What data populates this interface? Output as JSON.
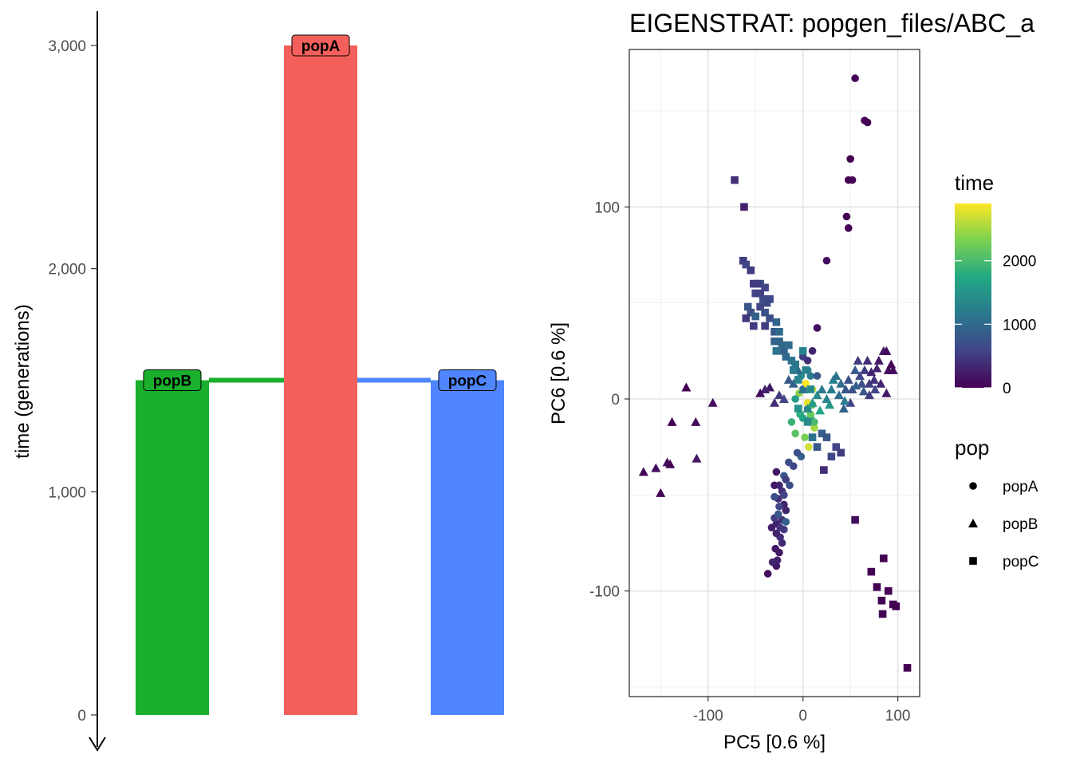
{
  "chart_data": [
    {
      "type": "bar",
      "ylabel": "time (generations)",
      "xlabel": "",
      "ylim": [
        0,
        3000
      ],
      "y_ticks": [
        0,
        1000,
        2000,
        3000
      ],
      "y_tick_labels": [
        "0",
        "1,000",
        "2,000",
        "3,000"
      ],
      "time_axis": "reversed arrow pointing down (present at bottom)",
      "populations": [
        {
          "name": "popB",
          "start": 1500,
          "end": 0,
          "color": "#1AAF2D"
        },
        {
          "name": "popA",
          "start": 3000,
          "end": 0,
          "color": "#F3605B"
        },
        {
          "name": "popC",
          "start": 1500,
          "end": 0,
          "color": "#4F86FF"
        }
      ],
      "splits": [
        {
          "from": "popA",
          "to": "popB",
          "time": 1500,
          "color": "#1AAF2D"
        },
        {
          "from": "popA",
          "to": "popC",
          "time": 1500,
          "color": "#4F86FF"
        }
      ],
      "grid": false
    },
    {
      "type": "scatter",
      "title": "EIGENSTRAT: popgen_files/ABC_a",
      "xlabel": "PC5 [0.6 %]",
      "ylabel": "PC6 [0.6 %]",
      "xlim": [
        -183,
        123
      ],
      "ylim": [
        -155,
        182
      ],
      "x_ticks": [
        -100,
        0,
        100
      ],
      "y_ticks": [
        -100,
        0,
        100
      ],
      "grid": true,
      "legend_position": "right",
      "color_legend": {
        "title": "time",
        "ticks": [
          0,
          1000,
          2000
        ],
        "range": [
          0,
          2900
        ],
        "palette": "viridis"
      },
      "shape_legend": {
        "title": "pop",
        "entries": [
          {
            "label": "popA",
            "shape": "circle"
          },
          {
            "label": "popB",
            "shape": "triangle"
          },
          {
            "label": "popC",
            "shape": "square"
          }
        ]
      },
      "series": [
        {
          "name": "popA",
          "shape": "circle",
          "points": [
            [
              55,
              167,
              0
            ],
            [
              65,
              145,
              0
            ],
            [
              68,
              144,
              0
            ],
            [
              50,
              125,
              0
            ],
            [
              48,
              114,
              0
            ],
            [
              52,
              114,
              0
            ],
            [
              46,
              95,
              0
            ],
            [
              48,
              89,
              0
            ],
            [
              25,
              72,
              100
            ],
            [
              15,
              37,
              100
            ],
            [
              10,
              25,
              300
            ],
            [
              5,
              20,
              400
            ],
            [
              0,
              22,
              500
            ],
            [
              -5,
              10,
              700
            ],
            [
              0,
              5,
              900
            ],
            [
              5,
              -5,
              1100
            ],
            [
              8,
              -10,
              1500
            ],
            [
              -3,
              -8,
              1800
            ],
            [
              10,
              -3,
              2000
            ],
            [
              12,
              -15,
              2500
            ],
            [
              2,
              -20,
              2300
            ],
            [
              6,
              -25,
              2700
            ],
            [
              -8,
              -18,
              2100
            ],
            [
              -12,
              -12,
              1900
            ],
            [
              -2,
              -30,
              900
            ],
            [
              -6,
              -28,
              700
            ],
            [
              -10,
              -35,
              600
            ],
            [
              -15,
              -33,
              700
            ],
            [
              -20,
              -40,
              800
            ],
            [
              -18,
              -42,
              500
            ],
            [
              -22,
              -48,
              400
            ],
            [
              -28,
              -38,
              200
            ],
            [
              -30,
              -45,
              200
            ],
            [
              -25,
              -45,
              300
            ],
            [
              -26,
              -52,
              400
            ],
            [
              -20,
              -55,
              300
            ],
            [
              -18,
              -58,
              300
            ],
            [
              -25,
              -56,
              600
            ],
            [
              -22,
              -63,
              400
            ],
            [
              -28,
              -65,
              300
            ],
            [
              -30,
              -62,
              500
            ],
            [
              -20,
              -68,
              500
            ],
            [
              -24,
              -72,
              400
            ],
            [
              -28,
              -70,
              300
            ],
            [
              -29,
              -78,
              200
            ],
            [
              -25,
              -80,
              200
            ],
            [
              -27,
              -84,
              300
            ],
            [
              -28,
              -87,
              200
            ],
            [
              -32,
              -85,
              300
            ],
            [
              -37,
              -91,
              100
            ],
            [
              -26,
              -60,
              800
            ],
            [
              -30,
              -51,
              700
            ],
            [
              -18,
              -64,
              900
            ],
            [
              -22,
              -75,
              350
            ],
            [
              -24,
              -67,
              450
            ],
            [
              -33,
              -67,
              250
            ],
            [
              -20,
              -50,
              600
            ],
            [
              -14,
              -45,
              700
            ],
            [
              5,
              -2,
              2800
            ],
            [
              10,
              5,
              2600
            ],
            [
              3,
              8,
              2900
            ],
            [
              -4,
              3,
              2400
            ],
            [
              8,
              -8,
              2200
            ],
            [
              12,
              -12,
              2000
            ],
            [
              0,
              -10,
              1700
            ],
            [
              -8,
              0,
              1600
            ],
            [
              5,
              15,
              1300
            ],
            [
              -2,
              12,
              1400
            ],
            [
              8,
              12,
              1200
            ],
            [
              15,
              12,
              800
            ]
          ]
        },
        {
          "name": "popB",
          "shape": "triangle",
          "points": [
            [
              -168,
              -38,
              0
            ],
            [
              -155,
              -36,
              100
            ],
            [
              -150,
              -49,
              0
            ],
            [
              -143,
              -33,
              100
            ],
            [
              -140,
              -34,
              0
            ],
            [
              -138,
              -12,
              0
            ],
            [
              -123,
              6,
              0
            ],
            [
              -113,
              -12,
              100
            ],
            [
              -112,
              -31,
              200
            ],
            [
              -95,
              -2,
              100
            ],
            [
              -35,
              6,
              200
            ],
            [
              -40,
              5,
              300
            ],
            [
              -30,
              -2,
              400
            ],
            [
              -25,
              2,
              500
            ],
            [
              -15,
              10,
              800
            ],
            [
              -10,
              8,
              900
            ],
            [
              -5,
              15,
              1000
            ],
            [
              0,
              5,
              1100
            ],
            [
              5,
              -5,
              1400
            ],
            [
              10,
              -2,
              1600
            ],
            [
              15,
              2,
              1400
            ],
            [
              20,
              5,
              1200
            ],
            [
              25,
              0,
              1300
            ],
            [
              30,
              5,
              1200
            ],
            [
              32,
              10,
              1300
            ],
            [
              35,
              12,
              1100
            ],
            [
              38,
              2,
              1000
            ],
            [
              40,
              8,
              1000
            ],
            [
              43,
              -5,
              900
            ],
            [
              45,
              5,
              800
            ],
            [
              48,
              10,
              700
            ],
            [
              50,
              -2,
              600
            ],
            [
              52,
              5,
              700
            ],
            [
              55,
              15,
              800
            ],
            [
              58,
              20,
              500
            ],
            [
              60,
              12,
              600
            ],
            [
              62,
              8,
              700
            ],
            [
              65,
              15,
              500
            ],
            [
              68,
              20,
              400
            ],
            [
              70,
              8,
              500
            ],
            [
              72,
              14,
              300
            ],
            [
              75,
              10,
              400
            ],
            [
              78,
              16,
              300
            ],
            [
              80,
              20,
              200
            ],
            [
              82,
              8,
              300
            ],
            [
              85,
              25,
              200
            ],
            [
              88,
              25,
              100
            ],
            [
              90,
              15,
              100
            ],
            [
              93,
              18,
              0
            ],
            [
              95,
              15,
              100
            ],
            [
              76,
              5,
              600
            ],
            [
              64,
              4,
              800
            ],
            [
              56,
              7,
              900
            ],
            [
              44,
              -1,
              1200
            ],
            [
              28,
              -3,
              1500
            ],
            [
              18,
              -6,
              1700
            ],
            [
              -20,
              0,
              600
            ],
            [
              -45,
              3,
              100
            ],
            [
              88,
              3,
              200
            ],
            [
              70,
              2,
              500
            ]
          ]
        },
        {
          "name": "popC",
          "shape": "square",
          "points": [
            [
              -72,
              114,
              400
            ],
            [
              -62,
              100,
              300
            ],
            [
              -63,
              72,
              500
            ],
            [
              -60,
              70,
              600
            ],
            [
              -55,
              67,
              500
            ],
            [
              -52,
              60,
              500
            ],
            [
              -50,
              55,
              600
            ],
            [
              -45,
              60,
              700
            ],
            [
              -48,
              60,
              500
            ],
            [
              -40,
              58,
              600
            ],
            [
              -42,
              52,
              700
            ],
            [
              -58,
              48,
              800
            ],
            [
              -55,
              45,
              700
            ],
            [
              -50,
              43,
              900
            ],
            [
              -45,
              48,
              600
            ],
            [
              -40,
              45,
              700
            ],
            [
              -52,
              38,
              500
            ],
            [
              -40,
              38,
              500
            ],
            [
              -35,
              42,
              700
            ],
            [
              -30,
              35,
              800
            ],
            [
              -28,
              40,
              900
            ],
            [
              -25,
              35,
              1000
            ],
            [
              -30,
              30,
              900
            ],
            [
              -22,
              28,
              1000
            ],
            [
              -28,
              25,
              1100
            ],
            [
              -20,
              25,
              900
            ],
            [
              -15,
              28,
              1000
            ],
            [
              -10,
              15,
              1200
            ],
            [
              -5,
              10,
              1300
            ],
            [
              -12,
              20,
              1100
            ],
            [
              0,
              25,
              1300
            ],
            [
              -5,
              -5,
              1500
            ],
            [
              5,
              -12,
              1400
            ],
            [
              10,
              -20,
              1100
            ],
            [
              15,
              -25,
              800
            ],
            [
              20,
              -18,
              900
            ],
            [
              25,
              -20,
              800
            ],
            [
              30,
              -30,
              600
            ],
            [
              35,
              -25,
              600
            ],
            [
              40,
              -28,
              500
            ],
            [
              22,
              -37,
              400
            ],
            [
              55,
              -63,
              100
            ],
            [
              72,
              -90,
              0
            ],
            [
              85,
              -83,
              0
            ],
            [
              78,
              -98,
              0
            ],
            [
              83,
              -105,
              0
            ],
            [
              90,
              -100,
              0
            ],
            [
              95,
              -107,
              0
            ],
            [
              98,
              -108,
              0
            ],
            [
              84,
              -112,
              0
            ],
            [
              110,
              -140,
              0
            ],
            [
              -35,
              52,
              650
            ],
            [
              -45,
              55,
              550
            ],
            [
              -38,
              50,
              620
            ],
            [
              -25,
              30,
              950
            ],
            [
              -18,
              22,
              1000
            ],
            [
              -8,
              18,
              1150
            ],
            [
              3,
              15,
              1250
            ],
            [
              8,
              5,
              1350
            ],
            [
              -60,
              42,
              450
            ]
          ]
        }
      ]
    }
  ]
}
